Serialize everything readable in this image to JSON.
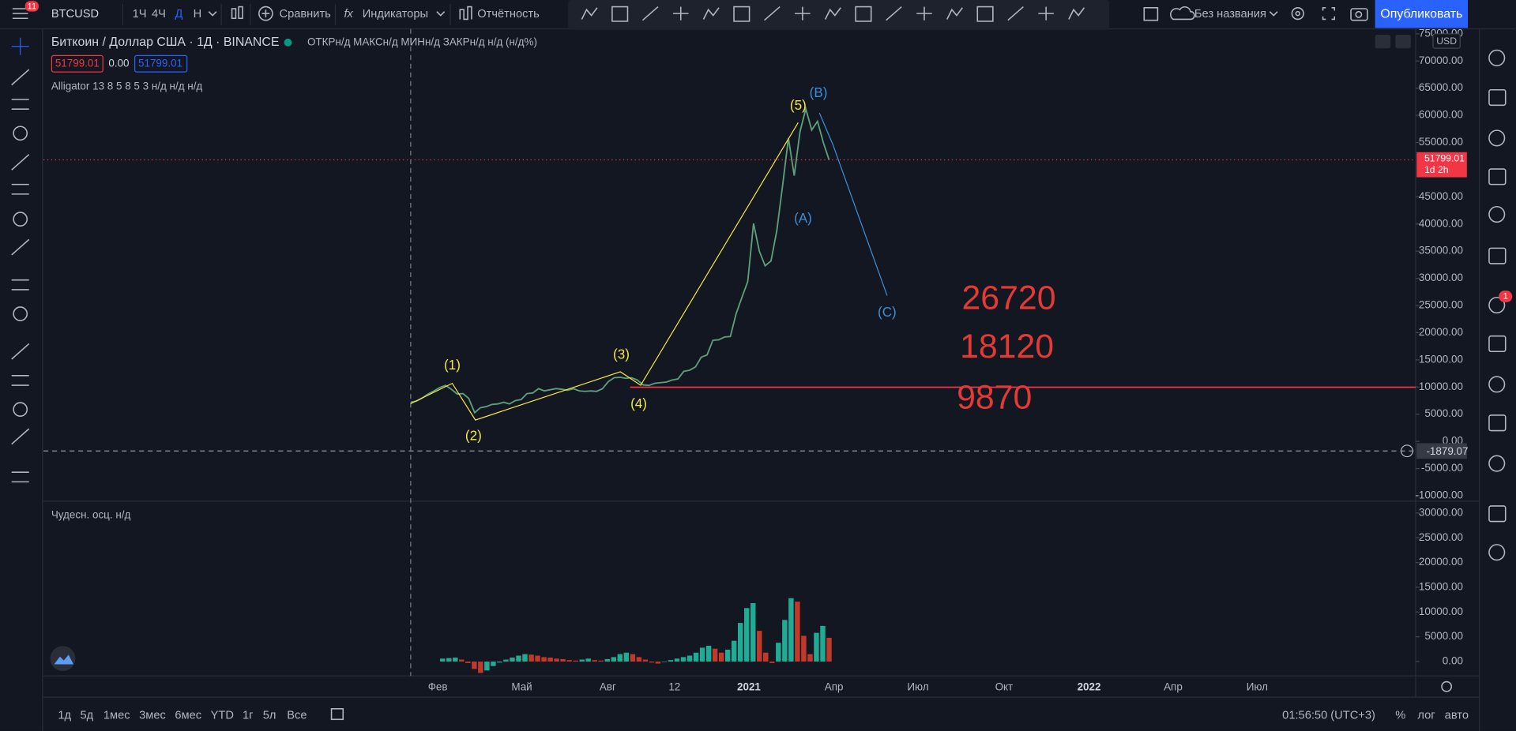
{
  "header": {
    "symbol": "BTCUSD",
    "menu_badge": "11",
    "intervals": [
      "1Ч",
      "4Ч",
      "Д",
      "Н"
    ],
    "compare": "Сравнить",
    "indicators": "Индикаторы",
    "reports": "Отчётность",
    "layout_name": "Без названия",
    "publish": "Опубликовать"
  },
  "legend": {
    "title": "Биткоин / Доллар США · 1Д · BINANCE",
    "ohlc": "ОТКРн/д МАКСн/д МИНн/д ЗАКРн/д н/д (н/д%)",
    "bid": "51799.01",
    "spread": "0.00",
    "ask": "51799.01",
    "alligator": "Alligator 13 8 5 8 5 3  н/д н/д н/д",
    "oscillator": "Чудесн. осц.  н/д"
  },
  "chart": {
    "currency": "USD",
    "price_ylim": [
      -11000,
      75000
    ],
    "price_yticks": [
      {
        "value": 75000,
        "label": "75000.00"
      },
      {
        "value": 70000,
        "label": "70000.00"
      },
      {
        "value": 65000,
        "label": "65000.00"
      },
      {
        "value": 60000,
        "label": "60000.00"
      },
      {
        "value": 55000,
        "label": "55000.00"
      },
      {
        "value": 45000,
        "label": "45000.00"
      },
      {
        "value": 40000,
        "label": "40000.00"
      },
      {
        "value": 35000,
        "label": "35000.00"
      },
      {
        "value": 30000,
        "label": "30000.00"
      },
      {
        "value": 25000,
        "label": "25000.00"
      },
      {
        "value": 20000,
        "label": "20000.00"
      },
      {
        "value": 15000,
        "label": "15000.00"
      },
      {
        "value": 10000,
        "label": "10000.00"
      },
      {
        "value": 5000,
        "label": "5000.00"
      },
      {
        "value": 0,
        "label": "0.00"
      },
      {
        "value": -5000,
        "label": "-5000.00"
      },
      {
        "value": -10000,
        "label": "-10000.00"
      }
    ],
    "price_color": "#5d9f7a",
    "price": [
      7200,
      7400,
      8000,
      8700,
      9300,
      9900,
      10300,
      9600,
      8700,
      8800,
      7900,
      5300,
      6200,
      6400,
      6800,
      6900,
      7200,
      6900,
      7500,
      7700,
      8800,
      8900,
      9700,
      9300,
      9500,
      9700,
      9600,
      9400,
      9700,
      9300,
      9200,
      9300,
      9200,
      9700,
      11000,
      11700,
      11800,
      11600,
      11700,
      11300,
      10400,
      10300,
      10700,
      10800,
      10900,
      11300,
      11500,
      12900,
      13100,
      13700,
      15500,
      15900,
      18600,
      18700,
      19200,
      19300,
      23500,
      26500,
      29400,
      40100,
      35000,
      32300,
      33200,
      38800,
      47100,
      55800,
      48900,
      57000,
      61200,
      57300,
      58900,
      55000,
      51800
    ],
    "last_price": {
      "value": 51799.01,
      "label": "51799.01"
    },
    "countdown": "1d 2h",
    "crosshair_label": "-1879.07",
    "osc_ylim": [
      -2900,
      32000
    ],
    "osc_yticks": [
      {
        "value": 30000,
        "label": "30000.00"
      },
      {
        "value": 25000,
        "label": "25000.00"
      },
      {
        "value": 20000,
        "label": "20000.00"
      },
      {
        "value": 15000,
        "label": "15000.00"
      },
      {
        "value": 10000,
        "label": "10000.00"
      },
      {
        "value": 5000,
        "label": "5000.00"
      },
      {
        "value": 0,
        "label": "0.00"
      }
    ],
    "osc_colors": {
      "up": "#22ab94",
      "down": "#c0392b"
    },
    "oscillator": [
      600,
      700,
      800,
      400,
      -300,
      -1500,
      -2300,
      -1800,
      -900,
      -200,
      400,
      800,
      1200,
      1500,
      1400,
      1200,
      900,
      800,
      600,
      500,
      300,
      200,
      400,
      600,
      300,
      200,
      500,
      900,
      1500,
      1800,
      1500,
      900,
      400,
      -200,
      -400,
      -100,
      300,
      600,
      900,
      1200,
      1800,
      2800,
      3200,
      2600,
      1800,
      2400,
      4200,
      7800,
      10800,
      11800,
      6200,
      1800,
      -300,
      3800,
      8400,
      12800,
      12100,
      5200,
      1500,
      5800,
      7200,
      4800
    ],
    "time_labels": [
      "Фев",
      "Май",
      "Авг",
      "12",
      "2021",
      "Апр",
      "Июл",
      "Окт",
      "2022",
      "Апр",
      "Июл"
    ],
    "waves": [
      "(1)",
      "(2)",
      "(3)",
      "(4)",
      "(5)",
      "(B)",
      "(A)",
      "(C)"
    ],
    "targets": [
      "26720",
      "18120",
      "9870"
    ]
  },
  "footer": {
    "ranges": [
      "1д",
      "5д",
      "1мес",
      "3мес",
      "6мес",
      "YTD",
      "1г",
      "5л",
      "Все"
    ],
    "clock": "01:56:50 (UTC+3)",
    "options": [
      "%",
      "лог",
      "авто"
    ],
    "notification_badge": "1"
  }
}
